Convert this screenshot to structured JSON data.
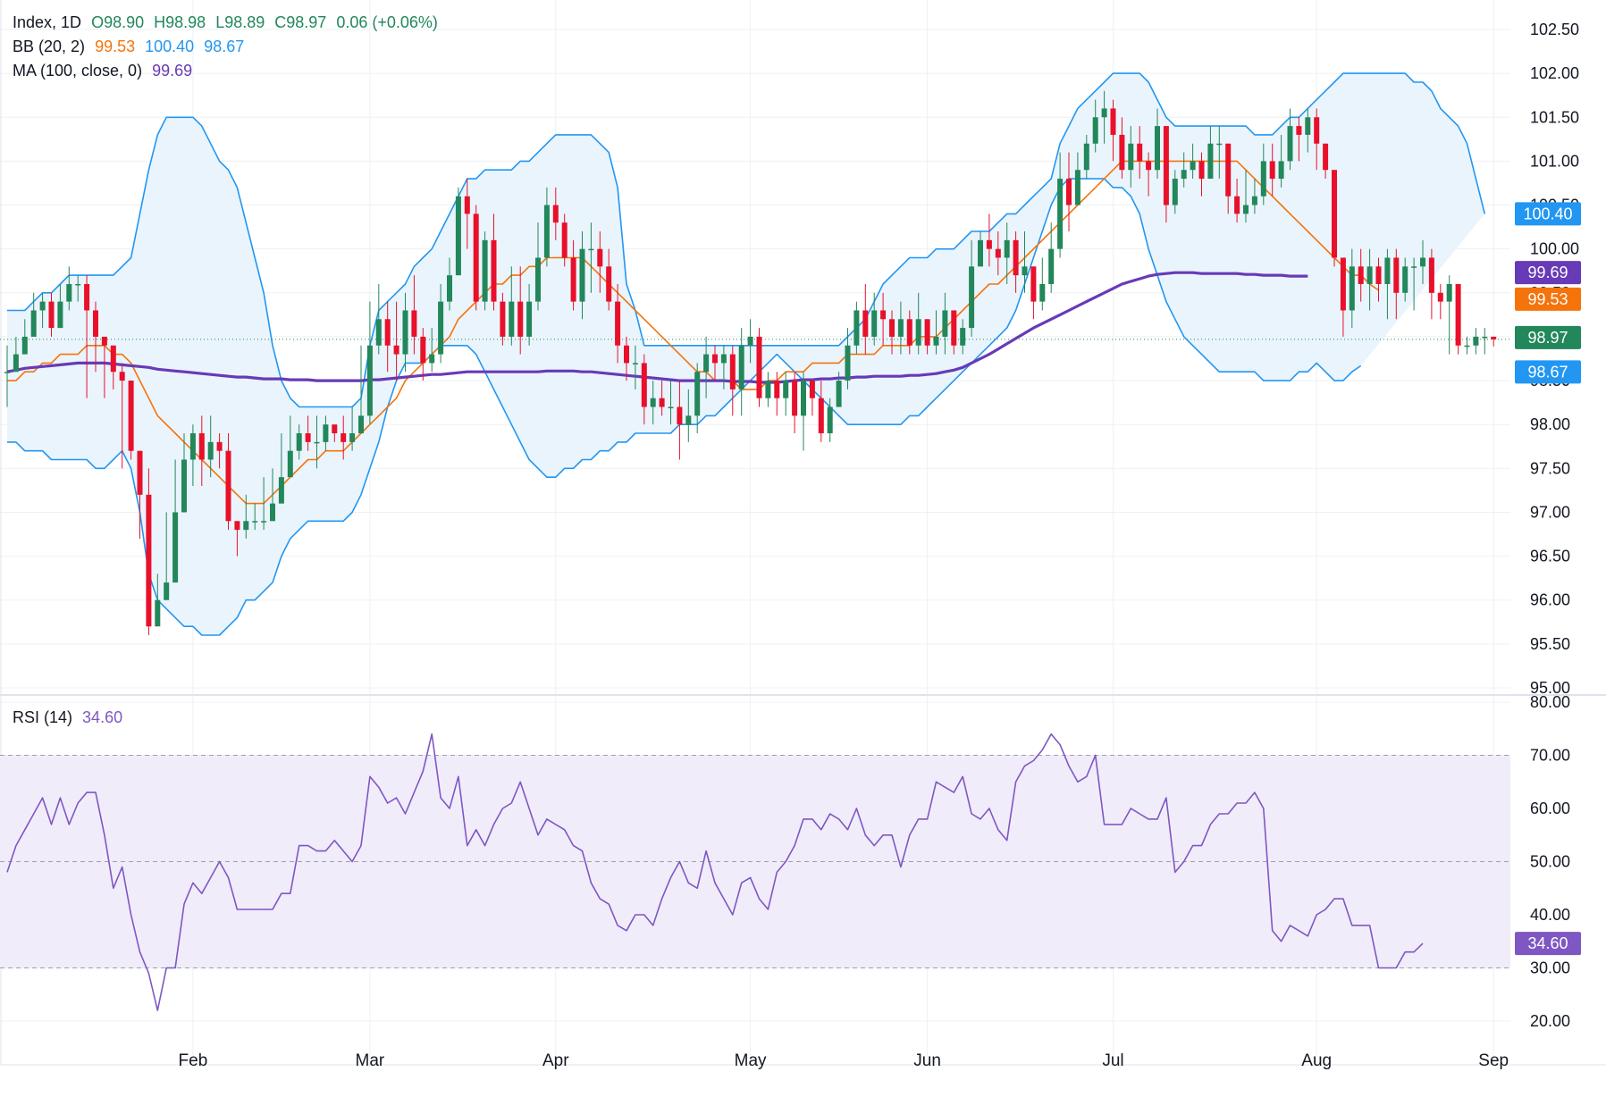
{
  "legend": {
    "main": {
      "symbol": "Index, 1D",
      "open": "O98.90",
      "high": "H98.98",
      "low": "L98.89",
      "close": "C98.97",
      "change": "0.06 (+0.06%)"
    },
    "bb": {
      "label": "BB (20, 2)",
      "basis": "99.53",
      "upper": "100.40",
      "lower": "98.67"
    },
    "ma": {
      "label": "MA (100, close, 0)",
      "value": "99.69"
    },
    "rsi": {
      "label": "RSI (14)",
      "value": "34.60"
    }
  },
  "chart_data": {
    "type": "candlestick",
    "x_ticks": [
      {
        "label": "Feb",
        "index": 21
      },
      {
        "label": "Mar",
        "index": 41
      },
      {
        "label": "Apr",
        "index": 62
      },
      {
        "label": "May",
        "index": 84
      },
      {
        "label": "Jun",
        "index": 104
      },
      {
        "label": "Jul",
        "index": 125
      },
      {
        "label": "Aug",
        "index": 148
      },
      {
        "label": "Sep",
        "index": 168
      }
    ],
    "price_axis": {
      "ylim": [
        95.0,
        102.5
      ],
      "ticks": [
        "102.50",
        "102.00",
        "101.50",
        "101.00",
        "100.50",
        "100.00",
        "99.50",
        "99.00",
        "98.50",
        "98.00",
        "97.50",
        "97.00",
        "96.50",
        "96.00",
        "95.50",
        "95.00"
      ]
    },
    "rsi_axis": {
      "ylim": [
        20,
        80
      ],
      "ticks": [
        "80.00",
        "70.00",
        "60.00",
        "50.00",
        "40.00",
        "30.00",
        "20.00"
      ],
      "levels": [
        70,
        50,
        30
      ]
    },
    "last_values": {
      "close": {
        "value": 98.97,
        "label": "98.97",
        "color": "#22875a"
      },
      "bb_upper": {
        "value": 100.4,
        "label": "100.40",
        "color": "#2196f3"
      },
      "bb_basis": {
        "value": 99.53,
        "label": "99.53",
        "color": "#f5730b"
      },
      "bb_lower": {
        "value": 98.67,
        "label": "98.67",
        "color": "#2196f3"
      },
      "ma": {
        "value": 99.69,
        "label": "99.69",
        "color": "#673ab7"
      },
      "rsi": {
        "value": 34.6,
        "label": "34.60",
        "color": "#7e57c2"
      }
    },
    "colors": {
      "up": "#22875a",
      "down": "#e8102a",
      "bb_line": "#2196f3",
      "bb_fill": "#eaf4fc",
      "basis": "#f5730b",
      "ma": "#673ab7",
      "rsi": "#7e57c2",
      "rsi_band": "#f1ecfa",
      "grid": "#eef0f3"
    },
    "close_start": 98.6,
    "close": [
      98.6,
      98.8,
      99.0,
      99.3,
      99.4,
      99.1,
      99.4,
      99.6,
      99.6,
      99.3,
      99.0,
      98.9,
      98.6,
      98.5,
      97.7,
      97.2,
      95.7,
      96.0,
      96.2,
      97.0,
      97.6,
      97.9,
      97.6,
      97.8,
      97.7,
      96.9,
      96.8,
      96.9,
      96.9,
      96.9,
      97.1,
      97.4,
      97.7,
      97.9,
      97.8,
      97.8,
      98.0,
      97.9,
      97.8,
      97.9,
      98.1,
      98.9,
      99.2,
      98.9,
      98.8,
      99.3,
      99.0,
      98.7,
      98.8,
      99.4,
      99.7,
      100.6,
      100.4,
      99.4,
      100.1,
      99.4,
      99.0,
      99.4,
      99.0,
      99.4,
      99.9,
      100.5,
      100.3,
      99.9,
      99.4,
      100.0,
      100.0,
      99.8,
      99.4,
      98.9,
      98.7,
      98.7,
      98.2,
      98.3,
      98.2,
      98.2,
      98.0,
      98.1,
      98.6,
      98.8,
      98.7,
      98.8,
      98.4,
      98.9,
      99.0,
      98.3,
      98.5,
      98.3,
      98.5,
      98.1,
      98.5,
      98.3,
      97.9,
      98.2,
      98.5,
      98.9,
      99.3,
      99.0,
      99.3,
      99.2,
      99.0,
      99.2,
      98.9,
      99.2,
      98.9,
      99.0,
      99.3,
      98.9,
      99.1,
      99.8,
      100.1,
      100.0,
      99.9,
      100.1,
      99.7,
      99.8,
      99.4,
      99.6,
      100.0,
      100.8,
      100.5,
      100.9,
      101.2,
      101.5,
      101.6,
      101.3,
      100.9,
      101.2,
      101.0,
      100.9,
      101.4,
      100.5,
      100.8,
      100.9,
      101.0,
      100.8,
      101.2,
      101.2,
      100.6,
      100.4,
      100.5,
      100.6,
      101.0,
      100.8,
      101.0,
      101.4,
      101.3,
      101.5,
      101.2,
      100.9,
      99.9,
      99.3,
      99.8,
      99.6,
      99.8,
      99.6,
      99.9,
      99.5,
      99.8,
      99.8,
      99.9,
      99.5,
      99.4,
      99.6,
      98.9,
      98.9,
      99.0,
      99.0,
      98.97
    ],
    "high": [
      98.9,
      99.0,
      99.2,
      99.5,
      99.5,
      99.5,
      99.6,
      99.8,
      99.7,
      99.7,
      99.4,
      99.0,
      98.8,
      98.7,
      98.4,
      97.6,
      97.5,
      96.3,
      97.0,
      97.6,
      97.9,
      98.0,
      98.1,
      98.1,
      97.9,
      97.9,
      96.9,
      97.2,
      97.1,
      97.4,
      97.5,
      97.9,
      98.1,
      98.0,
      98.1,
      98.1,
      98.1,
      98.0,
      98.1,
      98.2,
      98.9,
      99.4,
      99.6,
      99.4,
      99.4,
      99.5,
      99.7,
      99.1,
      99.1,
      99.6,
      99.9,
      100.7,
      100.8,
      100.5,
      100.2,
      100.4,
      99.5,
      99.8,
      99.8,
      99.6,
      100.3,
      100.7,
      100.7,
      100.4,
      100.1,
      100.2,
      100.3,
      100.2,
      100.0,
      99.6,
      99.0,
      98.9,
      98.8,
      98.5,
      98.5,
      98.5,
      98.5,
      98.4,
      98.7,
      99.0,
      98.9,
      98.9,
      98.9,
      99.1,
      99.2,
      99.1,
      98.6,
      98.6,
      98.6,
      98.6,
      98.6,
      98.5,
      98.5,
      98.3,
      98.6,
      99.1,
      99.4,
      99.6,
      99.5,
      99.5,
      99.3,
      99.4,
      99.3,
      99.5,
      99.2,
      99.3,
      99.5,
      99.3,
      99.2,
      100.1,
      100.2,
      100.4,
      100.2,
      100.3,
      100.2,
      100.2,
      99.8,
      99.9,
      100.3,
      101.1,
      101.1,
      101.1,
      101.3,
      101.7,
      101.8,
      101.7,
      101.5,
      101.4,
      101.4,
      101.1,
      101.6,
      101.4,
      100.9,
      101.1,
      101.2,
      101.1,
      101.4,
      101.4,
      101.1,
      100.8,
      100.9,
      100.8,
      101.2,
      101.2,
      101.3,
      101.6,
      101.5,
      101.6,
      101.6,
      101.2,
      100.9,
      99.9,
      100.0,
      100.0,
      100.0,
      99.9,
      100.0,
      100.0,
      99.9,
      99.9,
      100.1,
      100.0,
      99.6,
      99.7,
      99.6,
      99.0,
      99.1,
      99.1,
      98.98
    ],
    "low": [
      98.2,
      98.6,
      98.8,
      99.0,
      99.1,
      99.0,
      99.1,
      99.3,
      99.4,
      98.3,
      98.6,
      98.3,
      98.4,
      97.5,
      97.6,
      96.7,
      95.6,
      95.7,
      96.0,
      96.2,
      97.0,
      97.3,
      97.3,
      97.4,
      97.5,
      96.8,
      96.5,
      96.7,
      96.8,
      96.8,
      96.9,
      97.1,
      97.4,
      97.6,
      97.7,
      97.5,
      97.7,
      97.8,
      97.6,
      97.7,
      98.0,
      98.0,
      98.8,
      98.6,
      98.5,
      98.6,
      98.8,
      98.5,
      98.6,
      98.7,
      99.3,
      99.7,
      100.0,
      99.3,
      99.3,
      99.3,
      98.9,
      98.9,
      98.8,
      98.9,
      99.3,
      99.8,
      100.1,
      99.8,
      99.3,
      99.2,
      99.5,
      99.5,
      99.3,
      98.7,
      98.5,
      98.4,
      98.0,
      98.0,
      98.1,
      98.0,
      97.6,
      97.8,
      97.9,
      98.3,
      98.5,
      98.4,
      98.1,
      98.1,
      98.7,
      98.2,
      98.2,
      98.1,
      98.1,
      97.9,
      97.7,
      98.1,
      97.8,
      97.8,
      98.2,
      98.4,
      98.8,
      98.8,
      98.9,
      98.9,
      98.8,
      98.8,
      98.8,
      98.8,
      98.8,
      98.8,
      98.8,
      98.8,
      98.8,
      99.0,
      99.8,
      99.8,
      99.7,
      99.6,
      99.5,
      99.5,
      99.2,
      99.3,
      99.5,
      99.9,
      100.2,
      100.5,
      100.8,
      101.1,
      101.2,
      101.0,
      100.8,
      100.7,
      100.8,
      100.6,
      100.8,
      100.3,
      100.4,
      100.7,
      100.8,
      100.6,
      100.9,
      100.8,
      100.4,
      100.3,
      100.3,
      100.4,
      100.5,
      100.6,
      100.7,
      100.9,
      101.0,
      101.1,
      100.9,
      100.8,
      99.8,
      99.0,
      99.1,
      99.4,
      99.3,
      99.4,
      99.2,
      99.2,
      99.4,
      99.3,
      99.6,
      99.2,
      99.2,
      98.8,
      98.8,
      98.8,
      98.8,
      98.8,
      98.89
    ],
    "bb_upper": [
      99.3,
      99.3,
      99.3,
      99.4,
      99.5,
      99.5,
      99.6,
      99.7,
      99.7,
      99.7,
      99.7,
      99.7,
      99.7,
      99.8,
      99.9,
      100.4,
      100.9,
      101.3,
      101.5,
      101.5,
      101.5,
      101.5,
      101.4,
      101.2,
      101.0,
      100.9,
      100.7,
      100.3,
      99.9,
      99.5,
      98.9,
      98.5,
      98.3,
      98.2,
      98.2,
      98.2,
      98.2,
      98.2,
      98.2,
      98.2,
      98.3,
      98.9,
      99.3,
      99.4,
      99.5,
      99.6,
      99.8,
      99.9,
      100.0,
      100.2,
      100.4,
      100.6,
      100.8,
      100.8,
      100.9,
      100.9,
      100.9,
      100.9,
      101.0,
      101.0,
      101.1,
      101.2,
      101.3,
      101.3,
      101.3,
      101.3,
      101.3,
      101.2,
      101.1,
      100.7,
      99.6,
      99.3,
      98.9,
      98.9,
      98.9,
      98.9,
      98.9,
      98.9,
      98.9,
      98.9,
      98.9,
      98.9,
      98.9,
      98.9,
      98.9,
      98.9,
      98.9,
      98.9,
      98.9,
      98.9,
      98.9,
      98.9,
      98.9,
      98.9,
      98.9,
      99.0,
      99.1,
      99.2,
      99.4,
      99.6,
      99.7,
      99.8,
      99.9,
      99.9,
      99.9,
      100.0,
      100.0,
      100.0,
      100.1,
      100.2,
      100.2,
      100.2,
      100.3,
      100.4,
      100.4,
      100.5,
      100.6,
      100.7,
      100.8,
      101.2,
      101.4,
      101.6,
      101.7,
      101.8,
      101.9,
      102.0,
      102.0,
      102.0,
      102.0,
      101.9,
      101.7,
      101.5,
      101.4,
      101.4,
      101.4,
      101.4,
      101.4,
      101.4,
      101.4,
      101.4,
      101.4,
      101.3,
      101.3,
      101.3,
      101.4,
      101.5,
      101.5,
      101.6,
      101.7,
      101.8,
      101.9,
      102.0,
      102.0,
      102.0,
      102.0,
      102.0,
      102.0,
      102.0,
      102.0,
      101.9,
      101.9,
      101.8,
      101.6,
      101.5,
      101.4,
      101.2,
      100.8,
      100.4
    ],
    "bb_basis": [
      98.5,
      98.5,
      98.6,
      98.6,
      98.7,
      98.7,
      98.8,
      98.8,
      98.8,
      98.9,
      98.9,
      98.9,
      98.8,
      98.8,
      98.7,
      98.5,
      98.3,
      98.1,
      98.0,
      97.9,
      97.8,
      97.7,
      97.6,
      97.5,
      97.4,
      97.3,
      97.2,
      97.1,
      97.1,
      97.1,
      97.2,
      97.3,
      97.4,
      97.5,
      97.6,
      97.6,
      97.7,
      97.7,
      97.7,
      97.8,
      97.9,
      98.0,
      98.1,
      98.2,
      98.3,
      98.5,
      98.6,
      98.7,
      98.8,
      98.9,
      99.0,
      99.2,
      99.3,
      99.4,
      99.5,
      99.6,
      99.6,
      99.7,
      99.7,
      99.8,
      99.8,
      99.9,
      99.9,
      99.9,
      99.9,
      99.9,
      99.8,
      99.7,
      99.6,
      99.5,
      99.4,
      99.3,
      99.2,
      99.1,
      99.0,
      98.9,
      98.8,
      98.7,
      98.6,
      98.6,
      98.5,
      98.5,
      98.5,
      98.4,
      98.4,
      98.4,
      98.5,
      98.5,
      98.6,
      98.6,
      98.6,
      98.7,
      98.7,
      98.7,
      98.7,
      98.8,
      98.8,
      98.8,
      98.8,
      98.9,
      98.9,
      98.9,
      98.9,
      99.0,
      99.0,
      99.0,
      99.1,
      99.2,
      99.3,
      99.4,
      99.5,
      99.6,
      99.6,
      99.7,
      99.8,
      99.9,
      100.0,
      100.1,
      100.2,
      100.3,
      100.4,
      100.5,
      100.6,
      100.7,
      100.8,
      100.9,
      101.0,
      101.0,
      101.0,
      101.0,
      101.0,
      101.0,
      101.0,
      101.0,
      101.0,
      101.0,
      101.0,
      101.0,
      101.0,
      101.0,
      100.9,
      100.8,
      100.7,
      100.6,
      100.5,
      100.4,
      100.3,
      100.2,
      100.1,
      100.0,
      99.9,
      99.8,
      99.7,
      99.7,
      99.6,
      99.53
    ],
    "bb_lower": [
      97.8,
      97.8,
      97.7,
      97.7,
      97.7,
      97.6,
      97.6,
      97.6,
      97.6,
      97.6,
      97.5,
      97.5,
      97.6,
      97.7,
      97.5,
      97.0,
      96.3,
      96.0,
      95.9,
      95.8,
      95.7,
      95.7,
      95.6,
      95.6,
      95.6,
      95.7,
      95.8,
      96.0,
      96.0,
      96.1,
      96.2,
      96.5,
      96.7,
      96.8,
      96.9,
      96.9,
      96.9,
      96.9,
      96.9,
      97.0,
      97.2,
      97.5,
      97.8,
      98.2,
      98.5,
      98.7,
      98.7,
      98.7,
      98.8,
      98.9,
      98.9,
      98.9,
      98.9,
      98.8,
      98.6,
      98.4,
      98.2,
      98.0,
      97.8,
      97.6,
      97.5,
      97.4,
      97.4,
      97.5,
      97.5,
      97.6,
      97.6,
      97.7,
      97.7,
      97.8,
      97.8,
      97.9,
      97.9,
      97.9,
      97.9,
      97.9,
      98.0,
      98.0,
      98.0,
      98.1,
      98.1,
      98.2,
      98.3,
      98.4,
      98.5,
      98.6,
      98.7,
      98.8,
      98.7,
      98.6,
      98.5,
      98.4,
      98.3,
      98.2,
      98.1,
      98.0,
      98.0,
      98.0,
      98.0,
      98.0,
      98.0,
      98.0,
      98.1,
      98.1,
      98.2,
      98.3,
      98.4,
      98.5,
      98.6,
      98.7,
      98.8,
      98.9,
      99.0,
      99.1,
      99.3,
      99.6,
      99.9,
      100.2,
      100.5,
      100.7,
      100.8,
      100.8,
      100.8,
      100.8,
      100.8,
      100.7,
      100.7,
      100.6,
      100.4,
      100.0,
      99.7,
      99.4,
      99.2,
      99.0,
      98.9,
      98.8,
      98.7,
      98.6,
      98.6,
      98.6,
      98.6,
      98.6,
      98.5,
      98.5,
      98.5,
      98.5,
      98.6,
      98.6,
      98.7,
      98.6,
      98.5,
      98.5,
      98.6,
      98.67
    ],
    "ma": [
      98.6,
      98.62,
      98.64,
      98.65,
      98.66,
      98.67,
      98.68,
      98.69,
      98.7,
      98.7,
      98.7,
      98.7,
      98.69,
      98.68,
      98.67,
      98.66,
      98.65,
      98.63,
      98.62,
      98.61,
      98.6,
      98.59,
      98.58,
      98.57,
      98.56,
      98.55,
      98.54,
      98.54,
      98.53,
      98.52,
      98.52,
      98.52,
      98.51,
      98.51,
      98.51,
      98.5,
      98.5,
      98.5,
      98.5,
      98.5,
      98.5,
      98.51,
      98.51,
      98.52,
      98.53,
      98.54,
      98.55,
      98.56,
      98.57,
      98.57,
      98.58,
      98.59,
      98.6,
      98.6,
      98.6,
      98.6,
      98.6,
      98.6,
      98.6,
      98.6,
      98.6,
      98.61,
      98.61,
      98.61,
      98.61,
      98.6,
      98.6,
      98.59,
      98.58,
      98.57,
      98.56,
      98.55,
      98.54,
      98.53,
      98.52,
      98.51,
      98.5,
      98.5,
      98.5,
      98.5,
      98.5,
      98.5,
      98.49,
      98.49,
      98.49,
      98.48,
      98.48,
      98.48,
      98.49,
      98.5,
      98.51,
      98.51,
      98.52,
      98.52,
      98.53,
      98.53,
      98.54,
      98.54,
      98.55,
      98.55,
      98.55,
      98.55,
      98.56,
      98.56,
      98.57,
      98.58,
      98.6,
      98.62,
      98.65,
      98.7,
      98.75,
      98.8,
      98.86,
      98.92,
      98.98,
      99.04,
      99.1,
      99.15,
      99.2,
      99.25,
      99.3,
      99.35,
      99.4,
      99.45,
      99.5,
      99.55,
      99.6,
      99.63,
      99.66,
      99.69,
      99.71,
      99.72,
      99.73,
      99.73,
      99.73,
      99.72,
      99.72,
      99.72,
      99.72,
      99.72,
      99.71,
      99.71,
      99.7,
      99.7,
      99.7,
      99.69,
      99.69,
      99.69
    ],
    "rsi": [
      48,
      53,
      56,
      59,
      62,
      57,
      62,
      57,
      61,
      63,
      63,
      55,
      45,
      49,
      40,
      33,
      29,
      22,
      30,
      30,
      42,
      46,
      44,
      47,
      50,
      47,
      41,
      41,
      41,
      41,
      41,
      44,
      44,
      53,
      53,
      52,
      52,
      54,
      52,
      50,
      53,
      66,
      64,
      61,
      62,
      59,
      63,
      67,
      74,
      62,
      60,
      66,
      53,
      56,
      53,
      57,
      60,
      61,
      65,
      60,
      55,
      58,
      57,
      56,
      53,
      52,
      46,
      43,
      42,
      38,
      37,
      40,
      40,
      38,
      43,
      47,
      50,
      46,
      45,
      52,
      46,
      43,
      40,
      46,
      47,
      43,
      41,
      48,
      50,
      53,
      58,
      58,
      56,
      59,
      58,
      56,
      60,
      55,
      53,
      55,
      55,
      49,
      55,
      58,
      58,
      65,
      64,
      63,
      66,
      59,
      58,
      60,
      56,
      54,
      65,
      68,
      69,
      71,
      74,
      72,
      68,
      65,
      66,
      70,
      57,
      57,
      57,
      60,
      59,
      58,
      58,
      62,
      48,
      50,
      53,
      53,
      57,
      59,
      59,
      61,
      61,
      63,
      60,
      37,
      35,
      38,
      37,
      36,
      40,
      41,
      43,
      43,
      38,
      38,
      38,
      30,
      30,
      30,
      33,
      33,
      34.6
    ]
  }
}
